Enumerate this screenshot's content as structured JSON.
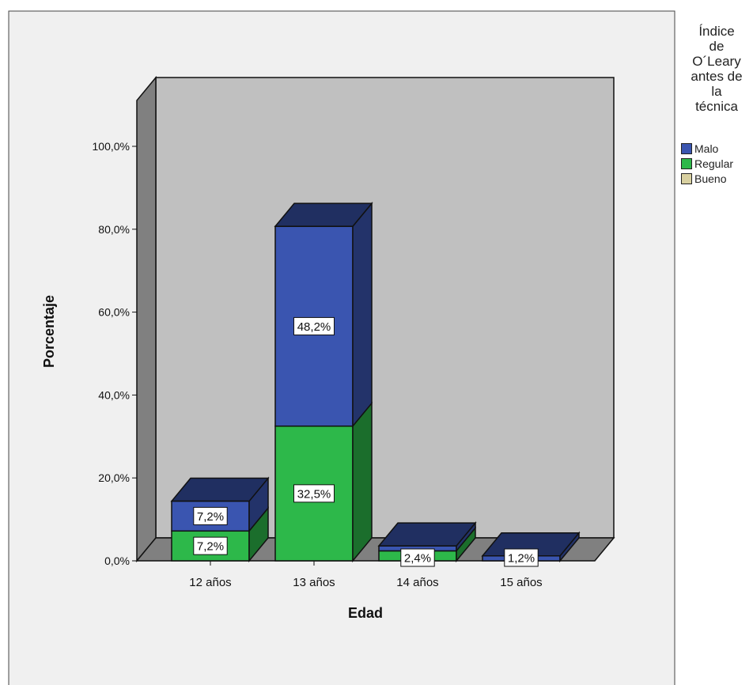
{
  "chart_data": {
    "type": "bar",
    "stacked": true,
    "three_d": true,
    "title": "",
    "xlabel": "Edad",
    "ylabel": "Porcentaje",
    "categories": [
      "12 años",
      "13 años",
      "14 años",
      "15 años"
    ],
    "series": [
      {
        "name": "Regular",
        "color": "#2db84a",
        "values": [
          7.2,
          32.5,
          2.4,
          0.0
        ]
      },
      {
        "name": "Malo",
        "color": "#3a55b0",
        "values": [
          7.2,
          48.2,
          1.2,
          1.2
        ]
      },
      {
        "name": "Bueno",
        "color": "#d8d0a0",
        "values": [
          0.0,
          0.0,
          0.0,
          0.0
        ]
      }
    ],
    "data_labels": [
      {
        "category": "12 años",
        "series": "Regular",
        "text": "7,2%"
      },
      {
        "category": "12 años",
        "series": "Malo",
        "text": "7,2%"
      },
      {
        "category": "13 años",
        "series": "Regular",
        "text": "32,5%"
      },
      {
        "category": "13 años",
        "series": "Malo",
        "text": "48,2%"
      },
      {
        "category": "14 años",
        "series": "Regular",
        "text": "2,4%"
      },
      {
        "category": "15 años",
        "series": "Malo",
        "text": "1,2%"
      }
    ],
    "ylim": [
      0,
      100
    ],
    "yticks": [
      0,
      20,
      40,
      60,
      80,
      100
    ],
    "ytick_labels": [
      "0,0%",
      "20,0%",
      "40,0%",
      "60,0%",
      "80,0%",
      "100,0%"
    ],
    "grid": false,
    "legend": {
      "title": "Índice de O´Leary antes de la técnica",
      "title_lines": [
        "Índice",
        "de",
        "O´Leary",
        "antes de",
        "la",
        "técnica"
      ],
      "position": "top-right",
      "items": [
        {
          "label": "Malo",
          "color": "#3a55b0"
        },
        {
          "label": "Regular",
          "color": "#2db84a"
        },
        {
          "label": "Bueno",
          "color": "#d8d0a0"
        }
      ]
    }
  }
}
